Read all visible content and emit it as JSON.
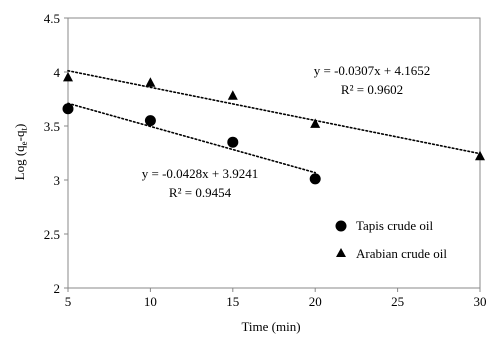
{
  "chart_data": {
    "type": "scatter",
    "title": "",
    "xlabel": "Time (min)",
    "ylabel_parts": [
      "Log (q",
      "e",
      "-q",
      "t",
      ")"
    ],
    "xlim": [
      5,
      30
    ],
    "ylim": [
      2,
      4.5
    ],
    "x_ticks": [
      5,
      10,
      15,
      20,
      25,
      30
    ],
    "y_ticks": [
      2,
      2.5,
      3,
      3.5,
      4,
      4.5
    ],
    "x_tick_labels": [
      "5",
      "10",
      "15",
      "20",
      "25",
      "30"
    ],
    "y_tick_labels": [
      "2",
      "2.5",
      "3",
      "3.5",
      "4",
      "4.5"
    ],
    "grid": false,
    "legend_position": "bottom-right",
    "series": [
      {
        "name": "Tapis crude oil",
        "marker": "circle",
        "color": "#000000",
        "x": [
          5,
          10,
          15,
          20
        ],
        "y": [
          3.66,
          3.55,
          3.35,
          3.01
        ],
        "trendline": {
          "slope": -0.0428,
          "intercept": 3.9241,
          "x_range": [
            5,
            20
          ],
          "equation": "y = -0.0428x + 3.9241",
          "r2": "R² = 0.9454"
        }
      },
      {
        "name": "Arabian crude oil",
        "marker": "triangle",
        "color": "#000000",
        "x": [
          5,
          10,
          15,
          20,
          30
        ],
        "y": [
          3.95,
          3.9,
          3.78,
          3.52,
          3.22
        ],
        "trendline": {
          "slope": -0.0307,
          "intercept": 4.1652,
          "x_range": [
            5,
            30
          ],
          "equation": "y = -0.0307x + 4.1652",
          "r2": "R² = 0.9602"
        }
      }
    ]
  }
}
